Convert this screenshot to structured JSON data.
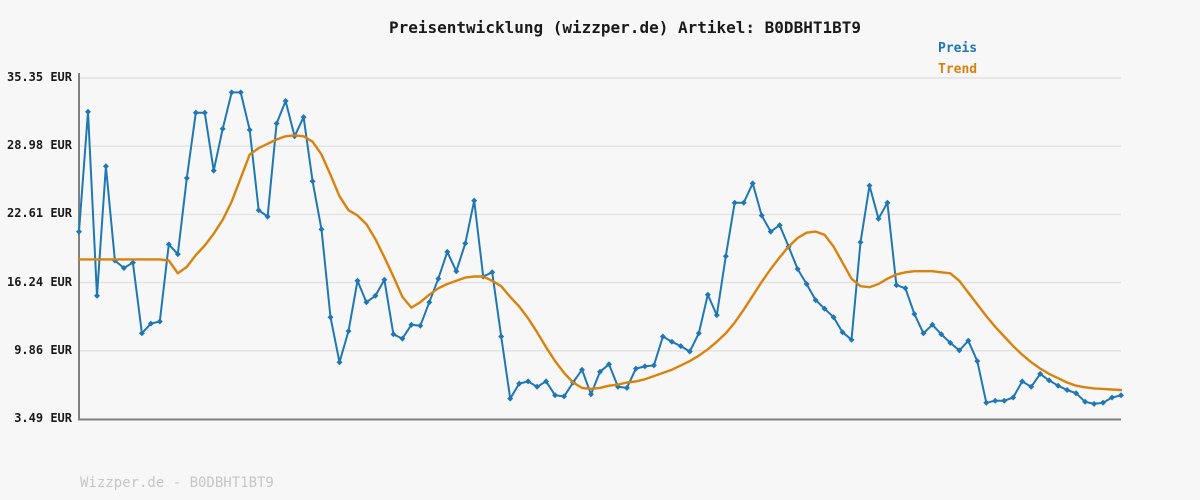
{
  "title": "Preisentwicklung (wizzper.de) Artikel: B0DBHT1BT9",
  "watermark": "Wizzper.de - B0DBHT1BT9",
  "legend": {
    "position": "top-right",
    "items": [
      {
        "label": "Preis",
        "color": "#1f77b4"
      },
      {
        "label": "Trend",
        "color": "#d9820d"
      }
    ]
  },
  "y_axis": {
    "tick_labels": [
      "35.35 EUR",
      "28.98 EUR",
      "22.61 EUR",
      "16.24 EUR",
      "9.86 EUR",
      "3.49 EUR"
    ],
    "tick_values": [
      35.35,
      28.98,
      22.61,
      16.24,
      9.86,
      3.49
    ],
    "currency": "EUR"
  },
  "chart_data": {
    "type": "line",
    "title": "Preisentwicklung (wizzper.de) Artikel: B0DBHT1BT9",
    "xlabel": "",
    "ylabel": "",
    "ylim": [
      3.49,
      35.35
    ],
    "y_ticks": [
      35.35,
      28.98,
      22.61,
      16.24,
      9.86,
      3.49
    ],
    "grid": "horizontal",
    "legend_position": "top-right",
    "series": [
      {
        "name": "Preis",
        "color": "#1f77b4",
        "marker": "diamond",
        "line_width": 2,
        "values": [
          21.0,
          32.2,
          15.0,
          27.1,
          18.3,
          17.6,
          18.1,
          11.5,
          12.4,
          12.6,
          19.8,
          18.9,
          26.0,
          32.1,
          32.1,
          26.7,
          30.6,
          34.0,
          34.0,
          30.5,
          23.0,
          22.4,
          31.1,
          33.2,
          29.9,
          31.7,
          25.7,
          21.2,
          13.0,
          8.8,
          11.7,
          16.4,
          14.4,
          15.0,
          16.5,
          11.4,
          11.0,
          12.3,
          12.2,
          14.4,
          16.6,
          19.1,
          17.3,
          19.9,
          23.9,
          16.8,
          17.2,
          11.2,
          5.4,
          6.8,
          7.0,
          6.5,
          7.0,
          5.7,
          5.6,
          6.9,
          8.1,
          5.8,
          7.9,
          8.6,
          6.5,
          6.4,
          8.2,
          8.4,
          8.5,
          11.2,
          10.7,
          10.3,
          9.8,
          11.5,
          15.1,
          13.2,
          18.7,
          23.7,
          23.7,
          25.5,
          22.5,
          21.0,
          21.6,
          19.6,
          17.5,
          16.1,
          14.6,
          13.8,
          13.0,
          11.6,
          10.9,
          20.0,
          25.3,
          22.2,
          23.7,
          16.0,
          15.7,
          13.3,
          11.5,
          12.3,
          11.4,
          10.6,
          9.9,
          10.8,
          8.9,
          5.0,
          5.2,
          5.2,
          5.5,
          7.0,
          6.5,
          7.7,
          7.1,
          6.6,
          6.2,
          5.9,
          5.1,
          4.9,
          5.0,
          5.5,
          5.7
        ]
      },
      {
        "name": "Trend",
        "color": "#d9820d",
        "marker": "none",
        "line_width": 2.4,
        "values": [
          18.4,
          18.4,
          18.4,
          18.4,
          18.4,
          18.4,
          18.4,
          18.4,
          18.4,
          18.4,
          18.3,
          17.1,
          17.7,
          18.8,
          19.7,
          20.8,
          22.1,
          23.8,
          26.0,
          28.2,
          28.8,
          29.2,
          29.6,
          29.9,
          30.0,
          29.9,
          29.4,
          28.2,
          26.3,
          24.3,
          23.0,
          22.5,
          21.7,
          20.3,
          18.6,
          16.8,
          14.9,
          13.9,
          14.4,
          15.1,
          15.7,
          16.1,
          16.4,
          16.7,
          16.8,
          16.8,
          16.4,
          15.9,
          14.9,
          14.0,
          12.9,
          11.6,
          10.2,
          8.9,
          7.8,
          6.9,
          6.4,
          6.3,
          6.4,
          6.6,
          6.7,
          6.9,
          7.0,
          7.2,
          7.5,
          7.8,
          8.1,
          8.5,
          8.9,
          9.4,
          10.0,
          10.7,
          11.5,
          12.5,
          13.7,
          15.0,
          16.3,
          17.5,
          18.6,
          19.6,
          20.4,
          20.9,
          21.0,
          20.7,
          19.6,
          18.1,
          16.6,
          15.9,
          15.8,
          16.1,
          16.6,
          17.0,
          17.2,
          17.3,
          17.3,
          17.3,
          17.2,
          17.1,
          16.4,
          15.3,
          14.2,
          13.1,
          12.1,
          11.2,
          10.3,
          9.5,
          8.8,
          8.2,
          7.7,
          7.3,
          6.9,
          6.6,
          6.45,
          6.35,
          6.3,
          6.25,
          6.2
        ]
      }
    ]
  },
  "colors": {
    "background": "#f7f7f7",
    "gridline": "#e2e2e2",
    "spine": "#808080",
    "text": "#1a1a1a",
    "watermark": "#c6c6c6"
  }
}
